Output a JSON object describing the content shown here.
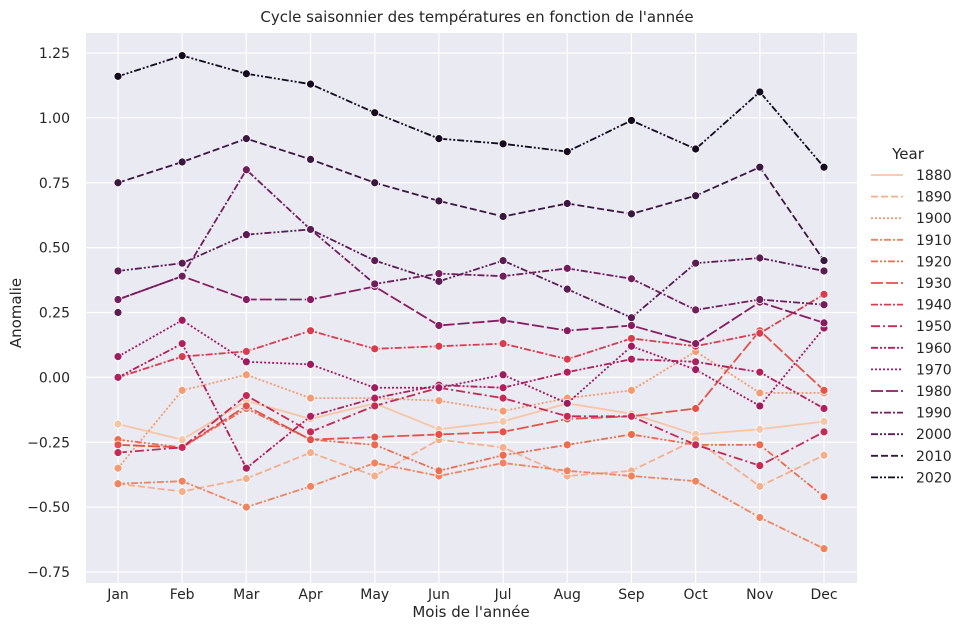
{
  "chart_data": {
    "type": "line",
    "title": "Cycle saisonnier des températures en fonction de l'année",
    "xlabel": "Mois de l'année",
    "ylabel": "Anomalie",
    "ylim": [
      -0.75,
      1.25
    ],
    "yticks": [
      "−0.75",
      "−0.50",
      "−0.25",
      "0.00",
      "0.25",
      "0.50",
      "0.75",
      "1.00",
      "1.25"
    ],
    "grid": true,
    "legend_title": "Year",
    "legend_position": "right",
    "categories": [
      "Jan",
      "Feb",
      "Mar",
      "Apr",
      "May",
      "Jun",
      "Jul",
      "Aug",
      "Sep",
      "Oct",
      "Nov",
      "Dec"
    ],
    "series": [
      {
        "name": "1880",
        "color": "#f6c6a6",
        "dash": "none",
        "marker": "none",
        "values": [
          -0.18,
          -0.24,
          -0.09,
          -0.16,
          -0.1,
          -0.2,
          -0.17,
          -0.1,
          -0.14,
          -0.22,
          -0.2,
          -0.17
        ]
      },
      {
        "name": "1890",
        "color": "#f4b08e",
        "dash": "dash",
        "marker": "dot",
        "values": [
          -0.41,
          -0.44,
          -0.39,
          -0.29,
          -0.38,
          -0.24,
          -0.27,
          -0.38,
          -0.36,
          -0.24,
          -0.42,
          -0.3
        ]
      },
      {
        "name": "1900",
        "color": "#f39b73",
        "dash": "dot",
        "marker": "dot",
        "values": [
          -0.35,
          -0.05,
          0.01,
          -0.08,
          -0.08,
          -0.09,
          -0.13,
          -0.08,
          -0.05,
          0.1,
          -0.06,
          -0.06
        ]
      },
      {
        "name": "1910",
        "color": "#f0845f",
        "dash": "dashdot",
        "marker": "dot",
        "values": [
          -0.41,
          -0.4,
          -0.5,
          -0.42,
          -0.33,
          -0.38,
          -0.33,
          -0.36,
          -0.38,
          -0.4,
          -0.54,
          -0.66
        ]
      },
      {
        "name": "1920",
        "color": "#ec6c4f",
        "dash": "dashdotdot",
        "marker": "dot",
        "values": [
          -0.24,
          -0.27,
          -0.12,
          -0.24,
          -0.26,
          -0.36,
          -0.3,
          -0.26,
          -0.22,
          -0.26,
          -0.26,
          -0.46
        ]
      },
      {
        "name": "1930",
        "color": "#e4524a",
        "dash": "longdash",
        "marker": "dot",
        "values": [
          -0.26,
          -0.27,
          -0.11,
          -0.24,
          -0.23,
          -0.22,
          -0.21,
          -0.16,
          -0.15,
          -0.12,
          0.18,
          -0.05
        ]
      },
      {
        "name": "1940",
        "color": "#d93c4e",
        "dash": "dashdot",
        "marker": "dot",
        "values": [
          0.0,
          0.08,
          0.1,
          0.18,
          0.11,
          0.12,
          0.13,
          0.07,
          0.15,
          0.12,
          0.17,
          0.32
        ]
      },
      {
        "name": "1950",
        "color": "#c62a55",
        "dash": "dashdot2",
        "marker": "dot",
        "values": [
          -0.29,
          -0.27,
          -0.07,
          -0.21,
          -0.11,
          -0.04,
          -0.08,
          -0.15,
          -0.15,
          -0.26,
          -0.34,
          -0.21
        ]
      },
      {
        "name": "1960",
        "color": "#b31e5c",
        "dash": "dashdotdot",
        "marker": "dot",
        "values": [
          0.0,
          0.13,
          -0.35,
          -0.15,
          -0.08,
          -0.03,
          -0.04,
          0.02,
          0.07,
          0.06,
          0.02,
          -0.12
        ]
      },
      {
        "name": "1970",
        "color": "#9e1b60",
        "dash": "dot",
        "marker": "dot",
        "values": [
          0.08,
          0.22,
          0.06,
          0.05,
          -0.04,
          -0.04,
          0.01,
          -0.1,
          0.12,
          0.03,
          -0.11,
          0.19
        ]
      },
      {
        "name": "1980",
        "color": "#881c60",
        "dash": "longdash",
        "marker": "dot",
        "values": [
          0.3,
          0.39,
          0.3,
          0.3,
          0.35,
          0.2,
          0.22,
          0.18,
          0.2,
          0.13,
          0.29,
          0.21
        ]
      },
      {
        "name": "1990",
        "color": "#721d5c",
        "dash": "dashdot",
        "marker": "dot",
        "values": [
          0.3,
          0.39,
          0.8,
          0.57,
          0.36,
          0.4,
          0.39,
          0.42,
          0.38,
          0.26,
          0.3,
          0.28
        ]
      },
      {
        "name": "2000",
        "color": "#5b1b54",
        "dash": "dashdotdot",
        "marker": "dot",
        "values": [
          0.41,
          0.44,
          0.55,
          0.57,
          0.45,
          0.37,
          0.45,
          0.34,
          0.23,
          0.44,
          0.46,
          0.41
        ]
      },
      {
        "name": "2010",
        "color": "#3a1640",
        "dash": "dash",
        "marker": "dot",
        "values": [
          0.75,
          0.83,
          0.92,
          0.84,
          0.75,
          0.68,
          0.62,
          0.67,
          0.63,
          0.7,
          0.81,
          0.45
        ]
      },
      {
        "name": "2020",
        "color": "#130b1e",
        "dash": "dashdotdot",
        "marker": "dot",
        "values": [
          1.16,
          1.24,
          1.17,
          1.13,
          1.02,
          0.92,
          0.9,
          0.87,
          0.99,
          0.88,
          1.1,
          0.81
        ]
      }
    ],
    "extra_points": [
      {
        "series": "2000",
        "x": "Jan",
        "y": 0.25
      }
    ],
    "colors": {
      "plot_background": "#eaeaf2",
      "grid": "#ffffff",
      "text": "#262626"
    }
  }
}
